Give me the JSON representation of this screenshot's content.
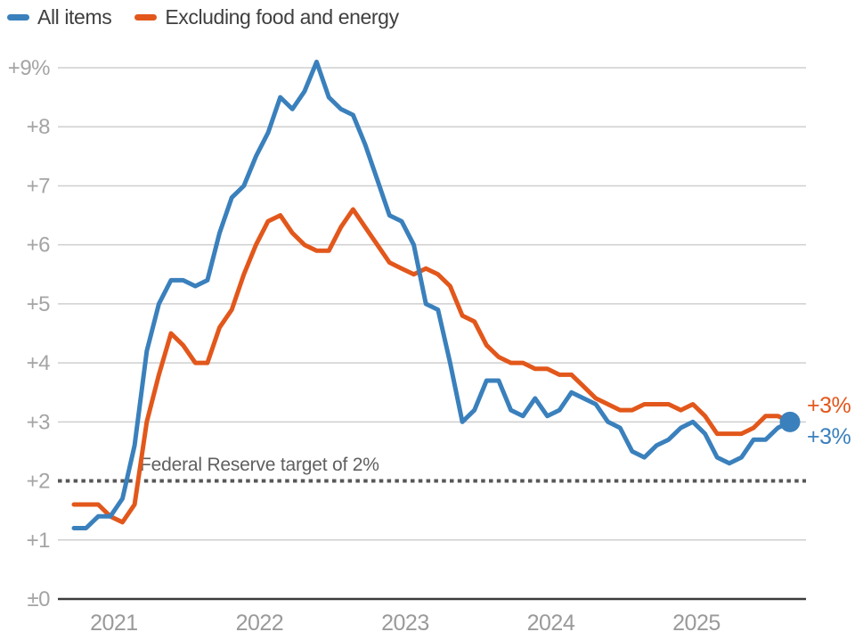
{
  "legend": {
    "items": [
      {
        "label": "All items",
        "color": "#3a80bc"
      },
      {
        "label": "Excluding food and energy",
        "color": "#e2571b"
      }
    ]
  },
  "annotation": {
    "label": "Federal Reserve target of 2%",
    "value": 2
  },
  "end_labels": {
    "all_items": "+3%",
    "core": "+3%"
  },
  "chart_data": {
    "type": "line",
    "title": "",
    "x_range": [
      "2020-10",
      "2025-09"
    ],
    "x_interval": "monthly",
    "ylim": [
      0,
      9.35
    ],
    "grid": true,
    "legend_position": "top-left",
    "y_ticks": [
      {
        "value": 0,
        "label": "±0"
      },
      {
        "value": 1,
        "label": "+1"
      },
      {
        "value": 2,
        "label": "+2"
      },
      {
        "value": 3,
        "label": "+3"
      },
      {
        "value": 4,
        "label": "+4"
      },
      {
        "value": 5,
        "label": "+5"
      },
      {
        "value": 6,
        "label": "+6"
      },
      {
        "value": 7,
        "label": "+7"
      },
      {
        "value": 8,
        "label": "+8"
      },
      {
        "value": 9,
        "label": "+9%"
      }
    ],
    "x_ticks": [
      {
        "label": "2021",
        "month_index": 3
      },
      {
        "label": "2022",
        "month_index": 15
      },
      {
        "label": "2023",
        "month_index": 27
      },
      {
        "label": "2024",
        "month_index": 39
      },
      {
        "label": "2025",
        "month_index": 51
      }
    ],
    "target_line": {
      "value": 2,
      "label": "Federal Reserve target of 2%",
      "style": "dotted",
      "color": "#575757"
    },
    "series": [
      {
        "name": "Excluding food and energy",
        "color": "#e2571b",
        "end_label": "+3%",
        "end_dot": false,
        "values": [
          1.6,
          1.6,
          1.6,
          1.4,
          1.3,
          1.6,
          3.0,
          3.8,
          4.5,
          4.3,
          4.0,
          4.0,
          4.6,
          4.9,
          5.5,
          6.0,
          6.4,
          6.5,
          6.2,
          6.0,
          5.9,
          5.9,
          6.3,
          6.6,
          6.3,
          6.0,
          5.7,
          5.6,
          5.5,
          5.6,
          5.5,
          5.3,
          4.8,
          4.7,
          4.3,
          4.1,
          4.0,
          4.0,
          3.9,
          3.9,
          3.8,
          3.8,
          3.6,
          3.4,
          3.3,
          3.2,
          3.2,
          3.3,
          3.3,
          3.3,
          3.2,
          3.3,
          3.1,
          2.8,
          2.8,
          2.8,
          2.9,
          3.1,
          3.1,
          3.0
        ]
      },
      {
        "name": "All items",
        "color": "#3a80bc",
        "end_label": "+3%",
        "end_dot": true,
        "values": [
          1.2,
          1.2,
          1.4,
          1.4,
          1.7,
          2.6,
          4.2,
          5.0,
          5.4,
          5.4,
          5.3,
          5.4,
          6.2,
          6.8,
          7.0,
          7.5,
          7.9,
          8.5,
          8.3,
          8.6,
          9.1,
          8.5,
          8.3,
          8.2,
          7.7,
          7.1,
          6.5,
          6.4,
          6.0,
          5.0,
          4.9,
          4.0,
          3.0,
          3.2,
          3.7,
          3.7,
          3.2,
          3.1,
          3.4,
          3.1,
          3.2,
          3.5,
          3.4,
          3.3,
          3.0,
          2.9,
          2.5,
          2.4,
          2.6,
          2.7,
          2.9,
          3.0,
          2.8,
          2.4,
          2.3,
          2.4,
          2.7,
          2.7,
          2.9,
          3.0
        ]
      }
    ],
    "style": {
      "grid_color": "#cfcfcf",
      "zero_line_color": "#3c3c3c",
      "tick_text_color": "#a4a4a4"
    }
  }
}
